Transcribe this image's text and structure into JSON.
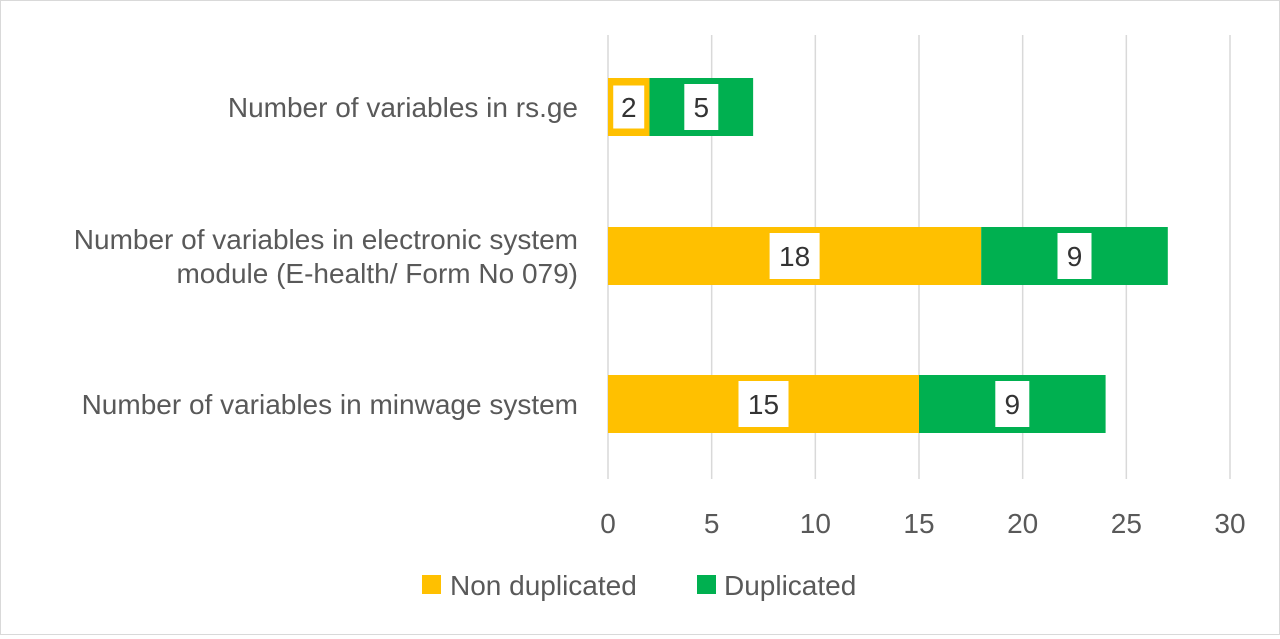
{
  "chart_data": {
    "type": "bar",
    "orientation": "horizontal",
    "stacked": true,
    "categories": [
      "Number of variables in rs.ge",
      "Number of variables in electronic system module (E-health/ Form No 079)",
      "Number of variables in minwage system"
    ],
    "category_lines": [
      [
        "Number of variables in rs.ge"
      ],
      [
        "Number of variables in electronic system",
        "module (E-health/ Form No 079)"
      ],
      [
        "Number of variables in minwage system"
      ]
    ],
    "series": [
      {
        "name": "Non duplicated",
        "color": "#FFC000",
        "values": [
          2,
          18,
          15
        ]
      },
      {
        "name": "Duplicated",
        "color": "#00B050",
        "values": [
          5,
          9,
          9
        ]
      }
    ],
    "xlim": [
      0,
      30
    ],
    "xticks": [
      0,
      5,
      10,
      15,
      20,
      25,
      30
    ],
    "grid": true,
    "data_labels": true,
    "legend_position": "bottom",
    "title": "",
    "xlabel": "",
    "ylabel": ""
  }
}
